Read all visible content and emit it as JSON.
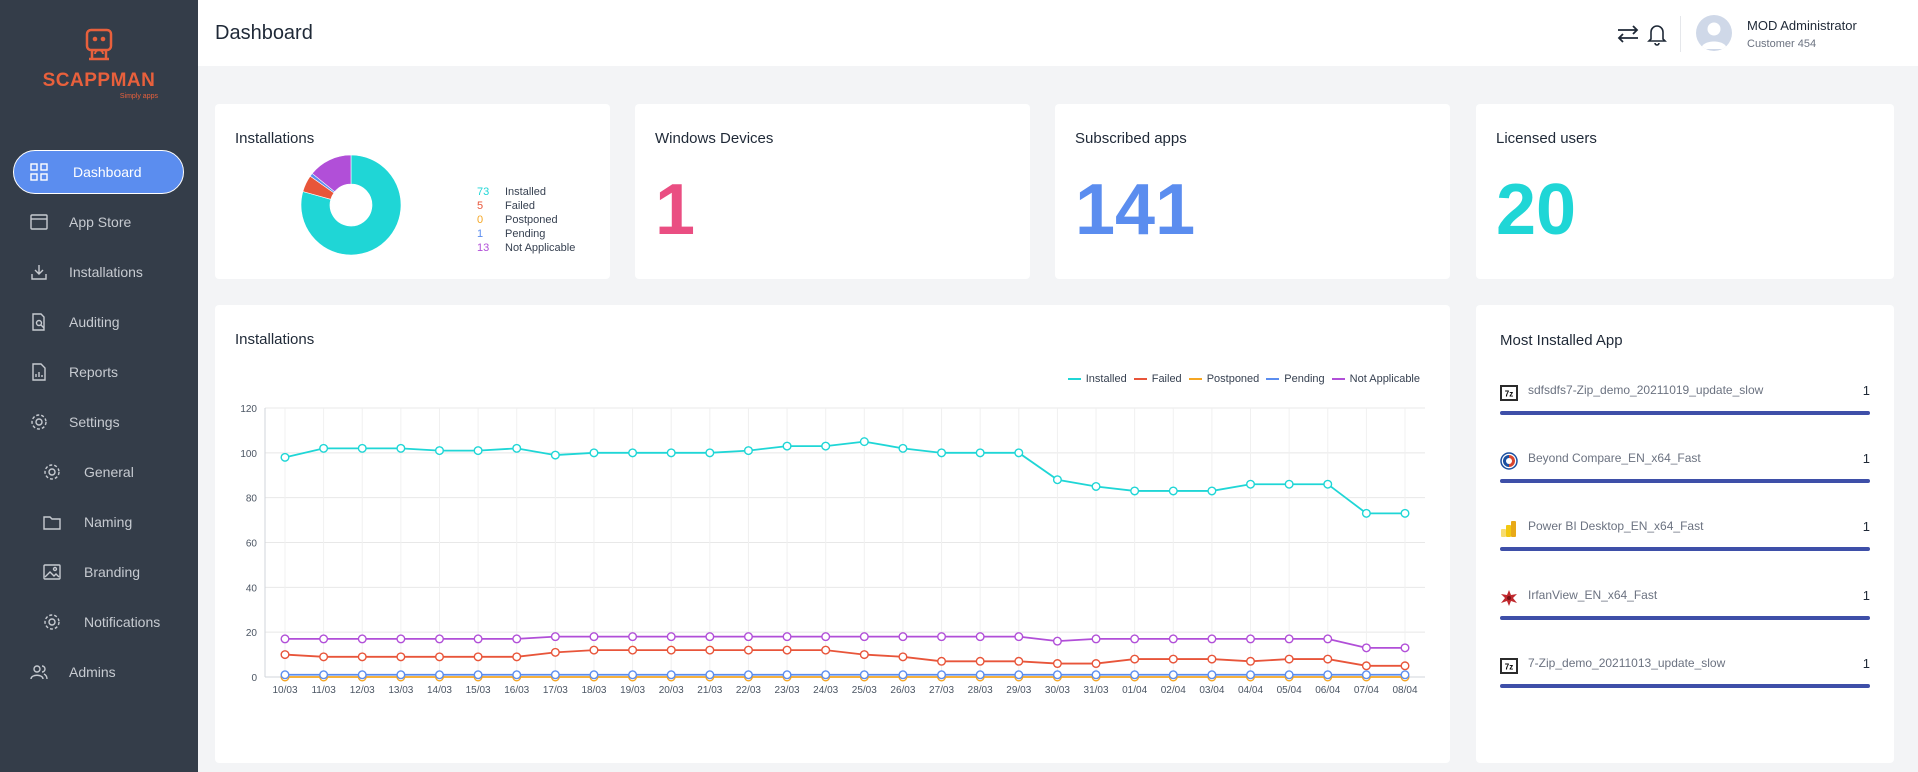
{
  "brand": {
    "name": "SCAPPMAN",
    "tagline": "Simply apps",
    "color": "#e8603c"
  },
  "sidebar": {
    "items": [
      {
        "label": "Dashboard",
        "icon": "grid-icon",
        "active": true
      },
      {
        "label": "App Store",
        "icon": "store-icon"
      },
      {
        "label": "Installations",
        "icon": "download-icon"
      },
      {
        "label": "Auditing",
        "icon": "audit-icon"
      },
      {
        "label": "Reports",
        "icon": "report-icon"
      },
      {
        "label": "Settings",
        "icon": "gear-icon"
      },
      {
        "label": "General",
        "icon": "gear-icon",
        "sub": true
      },
      {
        "label": "Naming",
        "icon": "folder-icon",
        "sub": true
      },
      {
        "label": "Branding",
        "icon": "image-icon",
        "sub": true
      },
      {
        "label": "Notifications",
        "icon": "gear-icon",
        "sub": true
      },
      {
        "label": "Admins",
        "icon": "users-icon"
      }
    ]
  },
  "header": {
    "title": "Dashboard",
    "user": {
      "name": "MOD Administrator",
      "subtitle": "Customer 454"
    }
  },
  "cards": {
    "installations": {
      "title": "Installations",
      "legend": [
        {
          "value": "73",
          "label": "Installed",
          "color": "#1fd6d6"
        },
        {
          "value": "5",
          "label": "Failed",
          "color": "#e8553a"
        },
        {
          "value": "0",
          "label": "Postponed",
          "color": "#f5a623"
        },
        {
          "value": "1",
          "label": "Pending",
          "color": "#5b8def"
        },
        {
          "value": "13",
          "label": "Not Applicable",
          "color": "#b14fd8"
        }
      ]
    },
    "windows_devices": {
      "title": "Windows Devices",
      "value": "1",
      "color": "#ea4e82"
    },
    "subscribed_apps": {
      "title": "Subscribed apps",
      "value": "141",
      "color": "#5b8def"
    },
    "licensed_users": {
      "title": "Licensed users",
      "value": "20",
      "color": "#1fd6d6"
    }
  },
  "line_card": {
    "title": "Installations"
  },
  "chart_data": [
    {
      "type": "pie",
      "labels": [
        "Installed",
        "Failed",
        "Postponed",
        "Pending",
        "Not Applicable"
      ],
      "values": [
        73,
        5,
        0,
        1,
        13
      ],
      "colors": [
        "#1fd6d6",
        "#e8553a",
        "#f5a623",
        "#5b8def",
        "#b14fd8"
      ]
    },
    {
      "type": "line",
      "categories": [
        "10/03",
        "11/03",
        "12/03",
        "13/03",
        "14/03",
        "15/03",
        "16/03",
        "17/03",
        "18/03",
        "19/03",
        "20/03",
        "21/03",
        "22/03",
        "23/03",
        "24/03",
        "25/03",
        "26/03",
        "27/03",
        "28/03",
        "29/03",
        "30/03",
        "31/03",
        "01/04",
        "02/04",
        "03/04",
        "04/04",
        "05/04",
        "06/04",
        "07/04",
        "08/04"
      ],
      "ylim": [
        0,
        120
      ],
      "yticks": [
        0,
        20,
        40,
        60,
        80,
        100,
        120
      ],
      "grid": true,
      "legend": "top-right",
      "series": [
        {
          "name": "Installed",
          "color": "#1fd6d6",
          "values": [
            98,
            102,
            102,
            102,
            101,
            101,
            102,
            99,
            100,
            100,
            100,
            100,
            101,
            103,
            103,
            105,
            102,
            100,
            100,
            100,
            88,
            85,
            83,
            83,
            83,
            86,
            86,
            86,
            73,
            73
          ]
        },
        {
          "name": "Failed",
          "color": "#e8553a",
          "values": [
            10,
            9,
            9,
            9,
            9,
            9,
            9,
            11,
            12,
            12,
            12,
            12,
            12,
            12,
            12,
            10,
            9,
            7,
            7,
            7,
            6,
            6,
            8,
            8,
            8,
            7,
            8,
            8,
            5,
            5
          ]
        },
        {
          "name": "Postponed",
          "color": "#f5a623",
          "values": [
            0,
            0,
            0,
            0,
            0,
            0,
            0,
            0,
            0,
            0,
            0,
            0,
            0,
            0,
            0,
            0,
            0,
            0,
            0,
            0,
            0,
            0,
            0,
            0,
            0,
            0,
            0,
            0,
            0,
            0
          ]
        },
        {
          "name": "Pending",
          "color": "#5b8def",
          "values": [
            1,
            1,
            1,
            1,
            1,
            1,
            1,
            1,
            1,
            1,
            1,
            1,
            1,
            1,
            1,
            1,
            1,
            1,
            1,
            1,
            1,
            1,
            1,
            1,
            1,
            1,
            1,
            1,
            1,
            1
          ]
        },
        {
          "name": "Not Applicable",
          "color": "#b14fd8",
          "values": [
            17,
            17,
            17,
            17,
            17,
            17,
            17,
            18,
            18,
            18,
            18,
            18,
            18,
            18,
            18,
            18,
            18,
            18,
            18,
            18,
            16,
            17,
            17,
            17,
            17,
            17,
            17,
            17,
            13,
            13
          ]
        }
      ]
    }
  ],
  "most_installed": {
    "title": "Most Installed App",
    "apps": [
      {
        "name": "sdfsdfs7-Zip_demo_20211019_update_slow",
        "count": "1",
        "icon": "7zip-icon"
      },
      {
        "name": "Beyond Compare_EN_x64_Fast",
        "count": "1",
        "icon": "beyond-compare-icon"
      },
      {
        "name": "Power BI Desktop_EN_x64_Fast",
        "count": "1",
        "icon": "powerbi-icon"
      },
      {
        "name": "IrfanView_EN_x64_Fast",
        "count": "1",
        "icon": "irfanview-icon"
      },
      {
        "name": "7-Zip_demo_20211013_update_slow",
        "count": "1",
        "icon": "7zip-icon"
      }
    ]
  }
}
